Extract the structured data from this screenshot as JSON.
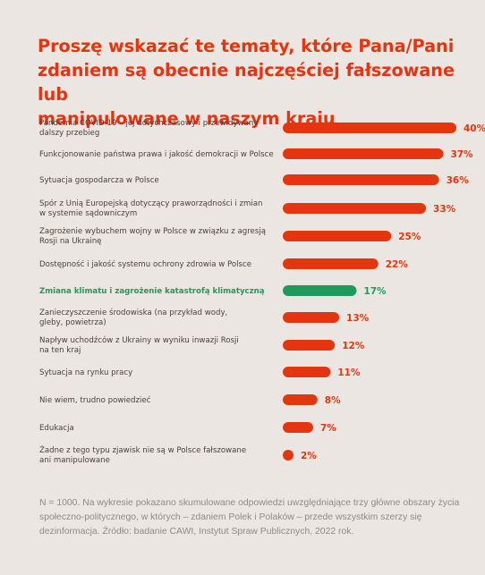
{
  "title": "Proszę wskazać te tematy, które Pana/Pani\nzdaniem są obecnie najczęściej fałszowane lub\nmanipulowane w naszym kraju",
  "note": "N = 1000. Na wykresie pokazano skumulowane odpowiedzi uwzględniające trzy główne obszary życia społeczno-politycznego, w których – zdaniem Polek i Polaków – przede wszystkim szerzy się dezinformacja. Źródło: badanie CAWI, Instytut Spraw Publicznych, 2022 rok.",
  "colors": {
    "accent": "#e53510",
    "highlight": "#1f9a5a",
    "label_text": "#4a3f3b"
  },
  "chart_data": {
    "type": "bar",
    "orientation": "horizontal",
    "title": "Proszę wskazać te tematy, które Pana/Pani zdaniem są obecnie najczęściej fałszowane lub manipulowane w naszym kraju",
    "unit": "%",
    "xlim": [
      0,
      40
    ],
    "grid": false,
    "legend": "none",
    "categories": [
      "Pandemia COVID-19 – jej dotychczasowy i przewidywany dalszy przebieg",
      "Funkcjonowanie państwa prawa i jakość demokracji w Polsce",
      "Sytuacja gospodarcza w Polsce",
      "Spór z Unią Europejską dotyczący praworządności i zmian w systemie sądowniczym",
      "Zagrożenie wybuchem wojny w Polsce w związku z agresją Rosji na Ukrainę",
      "Dostępność i jakość systemu ochrony zdrowia w Polsce",
      "Zmiana klimatu i zagrożenie katastrofą klimatyczną",
      "Zanieczyszczenie środowiska (na przykład wody, gleby, powietrza)",
      "Napływ uchodźców z Ukrainy w wyniku inwazji Rosji na ten kraj",
      "Sytuacja na rynku pracy",
      "Nie wiem, trudno powiedzieć",
      "Edukacja",
      "Żadne z tego typu zjawisk nie są w Polsce fałszowane ani manipulowane"
    ],
    "label_lines": [
      [
        "Pandemia COVID-19 – jej dotychczasowy i przewidywany",
        "dalszy przebieg"
      ],
      [
        "Funkcjonowanie państwa prawa i jakość demokracji w Polsce"
      ],
      [
        "Sytuacja gospodarcza w Polsce"
      ],
      [
        "Spór z Unią Europejską dotyczący praworządności i zmian",
        "w systemie sądowniczym"
      ],
      [
        "Zagrożenie wybuchem wojny w Polsce w związku z agresją",
        "Rosji na Ukrainę"
      ],
      [
        "Dostępność i jakość systemu ochrony zdrowia w Polsce"
      ],
      [
        "Zmiana klimatu i zagrożenie katastrofą klimatyczną"
      ],
      [
        "Zanieczyszczenie środowiska (na przykład wody,",
        "gleby, powietrza)"
      ],
      [
        "Napływ uchodźców z Ukrainy w wyniku inwazji Rosji",
        "na ten kraj"
      ],
      [
        "Sytuacja na rynku pracy"
      ],
      [
        "Nie wiem, trudno powiedzieć"
      ],
      [
        "Edukacja"
      ],
      [
        "Żadne z tego typu zjawisk nie są w Polsce fałszowane",
        "ani manipulowane"
      ]
    ],
    "values": [
      40,
      37,
      36,
      33,
      25,
      22,
      17,
      13,
      12,
      11,
      8,
      7,
      2
    ],
    "value_labels": [
      "40%",
      "37%",
      "36%",
      "33%",
      "25%",
      "22%",
      "17%",
      "13%",
      "12%",
      "11%",
      "8%",
      "7%",
      "2%"
    ],
    "highlighted_index": 6
  }
}
